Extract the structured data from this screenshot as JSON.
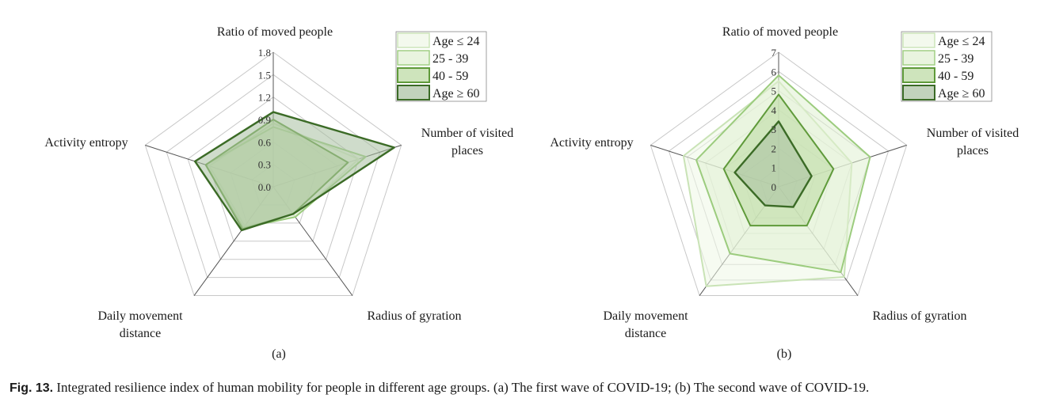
{
  "caption": {
    "label": "Fig. 13.",
    "text": "Integrated resilience index of human mobility for people in different age groups. (a) The first wave of COVID-19; (b) The second wave of COVID-19."
  },
  "colors": {
    "grid": "#c8c8c8",
    "axis": "#555555",
    "series": [
      {
        "stroke": "#c9e3b6",
        "fill": "#eef7e6"
      },
      {
        "stroke": "#9ccc7e",
        "fill": "#e0f0d2"
      },
      {
        "stroke": "#5f9a3a",
        "fill": "#b9d9a0"
      },
      {
        "stroke": "#3b6b26",
        "fill": "#a8bfa0"
      }
    ]
  },
  "chart_data": [
    {
      "type": "radar",
      "panel_label": "(a)",
      "axes": [
        "Ratio of moved people",
        "Number of visited places",
        "Radius of gyration",
        "Daily movement distance",
        "Activity entropy"
      ],
      "axis_labels_display": [
        [
          "Ratio of moved people"
        ],
        [
          "Number of visited",
          "places"
        ],
        [
          "Radius of gyration"
        ],
        [
          "Daily movement",
          "distance"
        ],
        [
          "Activity entropy"
        ]
      ],
      "rlim": [
        0,
        1.8
      ],
      "ticks": [
        "0.0",
        "0.3",
        "0.6",
        "0.9",
        "1.2",
        "1.5",
        "1.8"
      ],
      "tick_values": [
        0,
        0.3,
        0.6,
        0.9,
        1.2,
        1.5,
        1.8
      ],
      "legend_placement": "top-right",
      "series": [
        {
          "name": "Age ≤ 24",
          "values": [
            0.85,
            1.2,
            0.5,
            0.65,
            0.9
          ]
        },
        {
          "name": "25 - 39",
          "values": [
            0.8,
            1.3,
            0.5,
            0.68,
            0.95
          ]
        },
        {
          "name": "40 - 59",
          "values": [
            0.9,
            1.05,
            0.45,
            0.7,
            0.95
          ]
        },
        {
          "name": "Age ≥ 60",
          "values": [
            1.0,
            1.7,
            0.45,
            0.72,
            1.1
          ]
        }
      ]
    },
    {
      "type": "radar",
      "panel_label": "(b)",
      "axes": [
        "Ratio of moved people",
        "Number of visited places",
        "Radius of gyration",
        "Daily movement distance",
        "Activity entropy"
      ],
      "axis_labels_display": [
        [
          "Ratio of moved people"
        ],
        [
          "Number of visited",
          "places"
        ],
        [
          "Radius of gyration"
        ],
        [
          "Daily movement",
          "distance"
        ],
        [
          "Activity entropy"
        ]
      ],
      "rlim": [
        0,
        7
      ],
      "ticks": [
        "0",
        "1",
        "2",
        "3",
        "4",
        "5",
        "6",
        "7"
      ],
      "tick_values": [
        0,
        1,
        2,
        3,
        4,
        5,
        6,
        7
      ],
      "legend_placement": "top-right",
      "series": [
        {
          "name": "Age ≤ 24",
          "values": [
            5.5,
            4.0,
            5.8,
            6.4,
            5.2
          ]
        },
        {
          "name": "25 - 39",
          "values": [
            5.8,
            5.0,
            5.5,
            4.3,
            4.5
          ]
        },
        {
          "name": "40 - 59",
          "values": [
            4.8,
            3.0,
            2.5,
            2.5,
            3.0
          ]
        },
        {
          "name": "Age ≥ 60",
          "values": [
            3.4,
            1.8,
            1.3,
            1.2,
            2.4
          ]
        }
      ]
    }
  ]
}
